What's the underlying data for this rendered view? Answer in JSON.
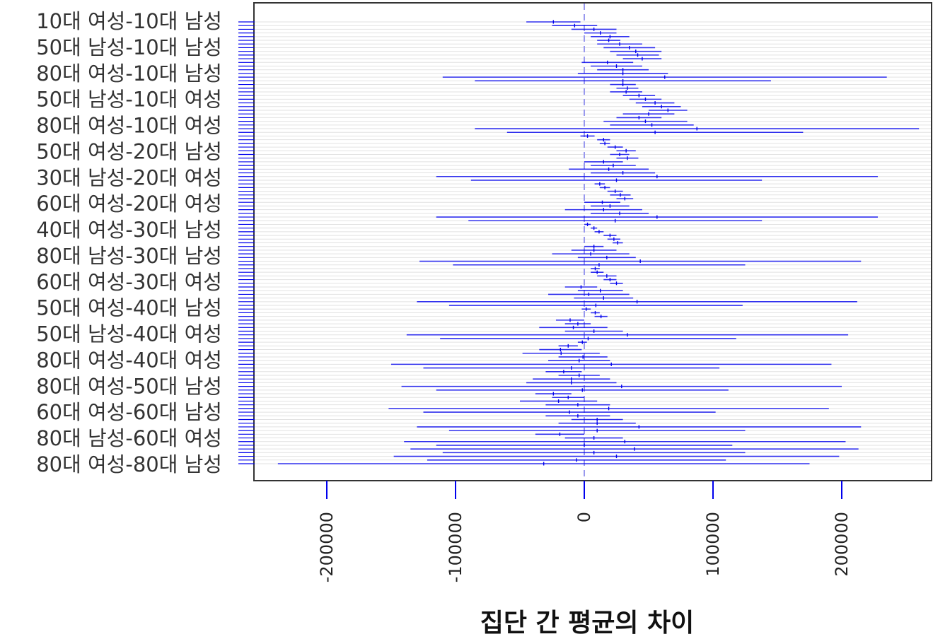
{
  "chart_data": {
    "type": "interval",
    "title": "",
    "xlabel": "집단 간 평균의 차이",
    "ylabel": "",
    "xlim": [
      -250000,
      270000
    ],
    "xticks": [
      -200000,
      -100000,
      0,
      100000,
      200000
    ],
    "xtick_labels": [
      "-200000",
      "-100000",
      "0",
      "100000",
      "200000"
    ],
    "reference_line_x": 0,
    "grid": true,
    "line_color": "#0000ee",
    "reference_color": "#9999ee",
    "visible_labels": [
      "10대 여성-10대 남성",
      "50대 남성-10대 남성",
      "80대 여성-10대 남성",
      "50대 남성-10대 여성",
      "80대 여성-10대 여성",
      "50대 여성-20대 남성",
      "30대 남성-20대 여성",
      "60대 여성-20대 여성",
      "40대 여성-30대 남성",
      "80대 남성-30대 남성",
      "60대 여성-30대 여성",
      "50대 여성-40대 남성",
      "50대 남성-40대 여성",
      "80대 여성-40대 여성",
      "80대 여성-50대 남성",
      "60대 여성-60대 남성",
      "80대 남성-60대 여성",
      "80대 여성-80대 남성"
    ],
    "intervals": [
      [
        -45000,
        -3000
      ],
      [
        -25000,
        10000
      ],
      [
        -10000,
        25000
      ],
      [
        0,
        25000
      ],
      [
        5000,
        35000
      ],
      [
        10000,
        28000
      ],
      [
        10000,
        45000
      ],
      [
        15000,
        55000
      ],
      [
        20000,
        60000
      ],
      [
        25000,
        58000
      ],
      [
        30000,
        60000
      ],
      [
        -2000,
        38000
      ],
      [
        5000,
        45000
      ],
      [
        10000,
        50000
      ],
      [
        -5000,
        65000
      ],
      [
        -110000,
        235000
      ],
      [
        -85000,
        145000
      ],
      [
        20000,
        40000
      ],
      [
        25000,
        42000
      ],
      [
        20000,
        45000
      ],
      [
        30000,
        55000
      ],
      [
        35000,
        60000
      ],
      [
        40000,
        70000
      ],
      [
        45000,
        75000
      ],
      [
        50000,
        80000
      ],
      [
        30000,
        70000
      ],
      [
        25000,
        60000
      ],
      [
        15000,
        80000
      ],
      [
        20000,
        85000
      ],
      [
        -85000,
        260000
      ],
      [
        -60000,
        170000
      ],
      [
        -3000,
        8000
      ],
      [
        10000,
        20000
      ],
      [
        12000,
        20000
      ],
      [
        18000,
        30000
      ],
      [
        25000,
        40000
      ],
      [
        20000,
        35000
      ],
      [
        25000,
        42000
      ],
      [
        0,
        30000
      ],
      [
        5000,
        40000
      ],
      [
        -12000,
        50000
      ],
      [
        5000,
        55000
      ],
      [
        -115000,
        228000
      ],
      [
        -88000,
        138000
      ],
      [
        8000,
        16000
      ],
      [
        12000,
        20000
      ],
      [
        18000,
        30000
      ],
      [
        20000,
        36000
      ],
      [
        25000,
        38000
      ],
      [
        0,
        28000
      ],
      [
        5000,
        35000
      ],
      [
        -15000,
        45000
      ],
      [
        5000,
        50000
      ],
      [
        -115000,
        228000
      ],
      [
        -90000,
        138000
      ],
      [
        0,
        5000
      ],
      [
        5000,
        10000
      ],
      [
        8000,
        15000
      ],
      [
        15000,
        25000
      ],
      [
        18000,
        28000
      ],
      [
        22000,
        30000
      ],
      [
        0,
        15000
      ],
      [
        -10000,
        25000
      ],
      [
        -25000,
        35000
      ],
      [
        -5000,
        40000
      ],
      [
        -128000,
        215000
      ],
      [
        -102000,
        125000
      ],
      [
        5000,
        12000
      ],
      [
        5000,
        15000
      ],
      [
        10000,
        25000
      ],
      [
        15000,
        25000
      ],
      [
        20000,
        30000
      ],
      [
        -15000,
        10000
      ],
      [
        -5000,
        30000
      ],
      [
        -28000,
        35000
      ],
      [
        -8000,
        38000
      ],
      [
        -130000,
        212000
      ],
      [
        -105000,
        123000
      ],
      [
        -2000,
        5000
      ],
      [
        5000,
        12000
      ],
      [
        8000,
        18000
      ],
      [
        -22000,
        0
      ],
      [
        -15000,
        5000
      ],
      [
        -35000,
        18000
      ],
      [
        -15000,
        30000
      ],
      [
        -138000,
        205000
      ],
      [
        -112000,
        118000
      ],
      [
        -5000,
        2000
      ],
      [
        -20000,
        -5000
      ],
      [
        -35000,
        -2000
      ],
      [
        -48000,
        12000
      ],
      [
        -20000,
        18000
      ],
      [
        -28000,
        20000
      ],
      [
        -150000,
        192000
      ],
      [
        -125000,
        105000
      ],
      [
        -30000,
        -2000
      ],
      [
        -20000,
        12000
      ],
      [
        -40000,
        20000
      ],
      [
        -45000,
        25000
      ],
      [
        -142000,
        200000
      ],
      [
        -115000,
        112000
      ],
      [
        -38000,
        -10000
      ],
      [
        -25000,
        0
      ],
      [
        -50000,
        10000
      ],
      [
        -30000,
        20000
      ],
      [
        -152000,
        190000
      ],
      [
        -125000,
        102000
      ],
      [
        -30000,
        20000
      ],
      [
        -10000,
        30000
      ],
      [
        -20000,
        40000
      ],
      [
        -130000,
        215000
      ],
      [
        -105000,
        125000
      ],
      [
        -38000,
        0
      ],
      [
        -15000,
        30000
      ],
      [
        -140000,
        203000
      ],
      [
        -115000,
        115000
      ],
      [
        -135000,
        213000
      ],
      [
        -110000,
        125000
      ],
      [
        -148000,
        198000
      ],
      [
        -122000,
        110000
      ],
      [
        -238000,
        175000
      ]
    ]
  }
}
